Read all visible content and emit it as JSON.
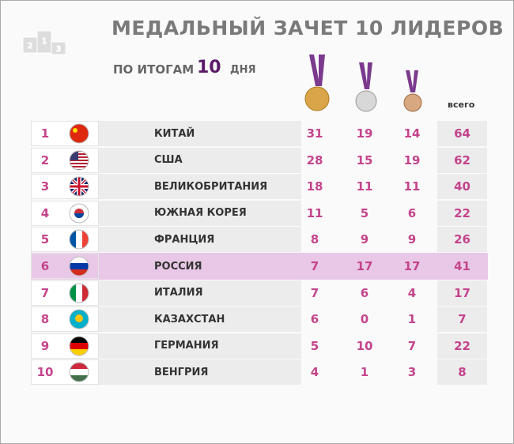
{
  "header": {
    "title": "МЕДАЛЬНЫЙ ЗАЧЕТ 10 ЛИДЕРОВ",
    "subtitle_prefix": "ПО ИТОГАМ",
    "day": "10",
    "subtitle_suffix": "ДНЯ"
  },
  "table": {
    "total_header": "всего",
    "rows": [
      [
        "1",
        "КИТАЙ",
        "31",
        "19",
        "14",
        "64"
      ],
      [
        "2",
        "США",
        "28",
        "15",
        "19",
        "62"
      ],
      [
        "3",
        "ВЕЛИКОБРИТАНИЯ",
        "18",
        "11",
        "11",
        "40"
      ],
      [
        "4",
        "ЮЖНАЯ КОРЕЯ",
        "11",
        "5",
        "6",
        "22"
      ],
      [
        "5",
        "ФРАНЦИЯ",
        "8",
        "9",
        "9",
        "26"
      ],
      [
        "6",
        "РОССИЯ",
        "7",
        "17",
        "17",
        "41"
      ],
      [
        "7",
        "ИТАЛИЯ",
        "7",
        "6",
        "4",
        "17"
      ],
      [
        "8",
        "КАЗАХСТАН",
        "6",
        "0",
        "1",
        "7"
      ],
      [
        "9",
        "ГЕРМАНИЯ",
        "5",
        "10",
        "7",
        "22"
      ],
      [
        "10",
        "ВЕНГРИЯ",
        "4",
        "1",
        "3",
        "8"
      ]
    ]
  }
}
